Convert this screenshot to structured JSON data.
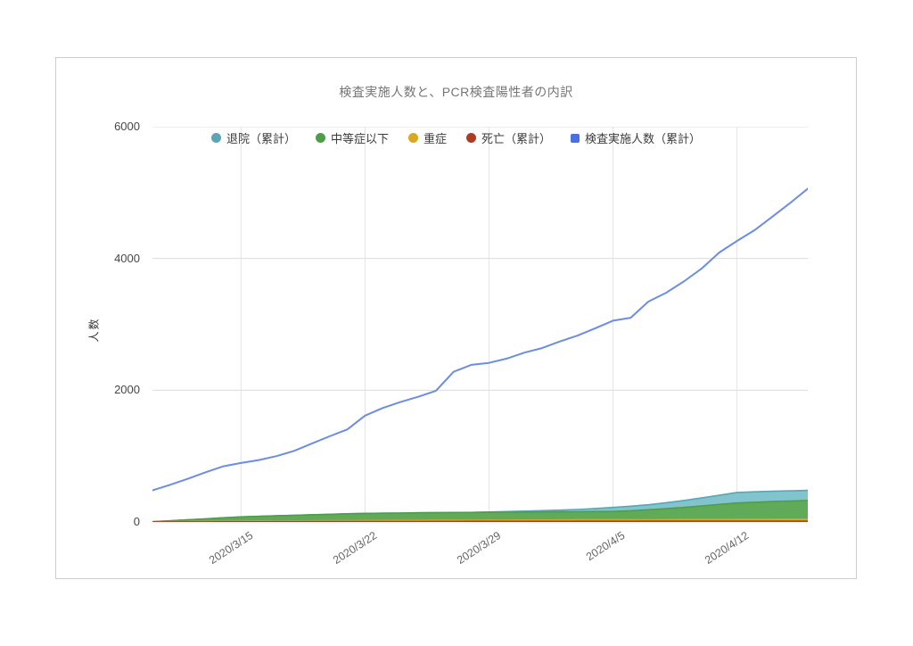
{
  "page": {
    "background": "#ffffff"
  },
  "card": {
    "border_color": "#cdcdcd",
    "background": "#ffffff"
  },
  "chart_data": {
    "type": "area",
    "subtype": "stacked-area-with-line",
    "title": "検査実施人数と、PCR検査陽性者の内訳",
    "xlabel": "",
    "ylabel": "人数",
    "ylim": [
      0,
      6000
    ],
    "y_ticks": [
      0,
      2000,
      4000,
      6000
    ],
    "grid": true,
    "legend_position": "top-center",
    "x": [
      "2020/3/10",
      "2020/3/11",
      "2020/3/12",
      "2020/3/13",
      "2020/3/14",
      "2020/3/15",
      "2020/3/16",
      "2020/3/17",
      "2020/3/18",
      "2020/3/19",
      "2020/3/20",
      "2020/3/21",
      "2020/3/22",
      "2020/3/23",
      "2020/3/24",
      "2020/3/25",
      "2020/3/26",
      "2020/3/27",
      "2020/3/28",
      "2020/3/29",
      "2020/3/30",
      "2020/3/31",
      "2020/4/1",
      "2020/4/2",
      "2020/4/3",
      "2020/4/4",
      "2020/4/5",
      "2020/4/6",
      "2020/4/7",
      "2020/4/8",
      "2020/4/9",
      "2020/4/10",
      "2020/4/11",
      "2020/4/12",
      "2020/4/13",
      "2020/4/14",
      "2020/4/15",
      "2020/4/16"
    ],
    "x_tick_labels": [
      "2020/3/15",
      "2020/3/22",
      "2020/3/29",
      "2020/4/5",
      "2020/4/12"
    ],
    "x_tick_indices": [
      5,
      12,
      19,
      26,
      33
    ],
    "series": [
      {
        "name": "退院（累計）",
        "type": "area",
        "marker": "circle",
        "color": "#58a6b6",
        "fill": "#82c4ce",
        "values": [
          0,
          0,
          0,
          0,
          0,
          0,
          0,
          0,
          0,
          0,
          0,
          0,
          0,
          0,
          0,
          0,
          0,
          0,
          0,
          5,
          9,
          14,
          19,
          25,
          34,
          47,
          61,
          70,
          77,
          90,
          105,
          122,
          138,
          159,
          158,
          156,
          155,
          154
        ]
      },
      {
        "name": "中等症以下",
        "type": "area",
        "marker": "circle",
        "color": "#4f9d4a",
        "fill": "#61aa58",
        "values": [
          2,
          15,
          28,
          42,
          55,
          67,
          74,
          80,
          87,
          93,
          98,
          104,
          108,
          110,
          112,
          114,
          115,
          116,
          118,
          119,
          120,
          121,
          123,
          124,
          124,
          126,
          127,
          136,
          151,
          167,
          185,
          207,
          230,
          251,
          262,
          271,
          279,
          286
        ]
      },
      {
        "name": "重症",
        "type": "area",
        "marker": "circle",
        "color": "#d9a721",
        "fill": "#e9b93a",
        "values": [
          1,
          2,
          3,
          4,
          5,
          7,
          9,
          10,
          11,
          12,
          14,
          14,
          16,
          17,
          17,
          18,
          18,
          19,
          18,
          19,
          20,
          20,
          20,
          21,
          21,
          21,
          22,
          23,
          22,
          23,
          24,
          23,
          24,
          25,
          25,
          25,
          25,
          26
        ]
      },
      {
        "name": "死亡（累計）",
        "type": "area",
        "marker": "circle",
        "color": "#b03a24",
        "fill": "#c35531",
        "values": [
          1,
          1,
          2,
          2,
          3,
          3,
          3,
          4,
          4,
          5,
          5,
          6,
          6,
          6,
          7,
          7,
          8,
          8,
          9,
          9,
          9,
          10,
          10,
          10,
          11,
          11,
          11,
          11,
          12,
          12,
          12,
          13,
          13,
          13,
          13,
          14,
          14,
          14
        ]
      },
      {
        "name": "検査実施人数（累計）",
        "type": "line",
        "marker": "square",
        "color": "#6c8de2",
        "legend_color": "#4a70e0",
        "values": [
          480,
          565,
          655,
          755,
          845,
          895,
          940,
          1000,
          1080,
          1190,
          1300,
          1405,
          1615,
          1730,
          1820,
          1900,
          1990,
          2280,
          2385,
          2415,
          2480,
          2570,
          2640,
          2740,
          2830,
          2940,
          3055,
          3100,
          3345,
          3480,
          3650,
          3845,
          4090,
          4265,
          4430,
          4635,
          4840,
          5060
        ]
      }
    ],
    "gridline_color_h": "#dcdcdc",
    "gridline_color_v": "#e4e4e4"
  }
}
